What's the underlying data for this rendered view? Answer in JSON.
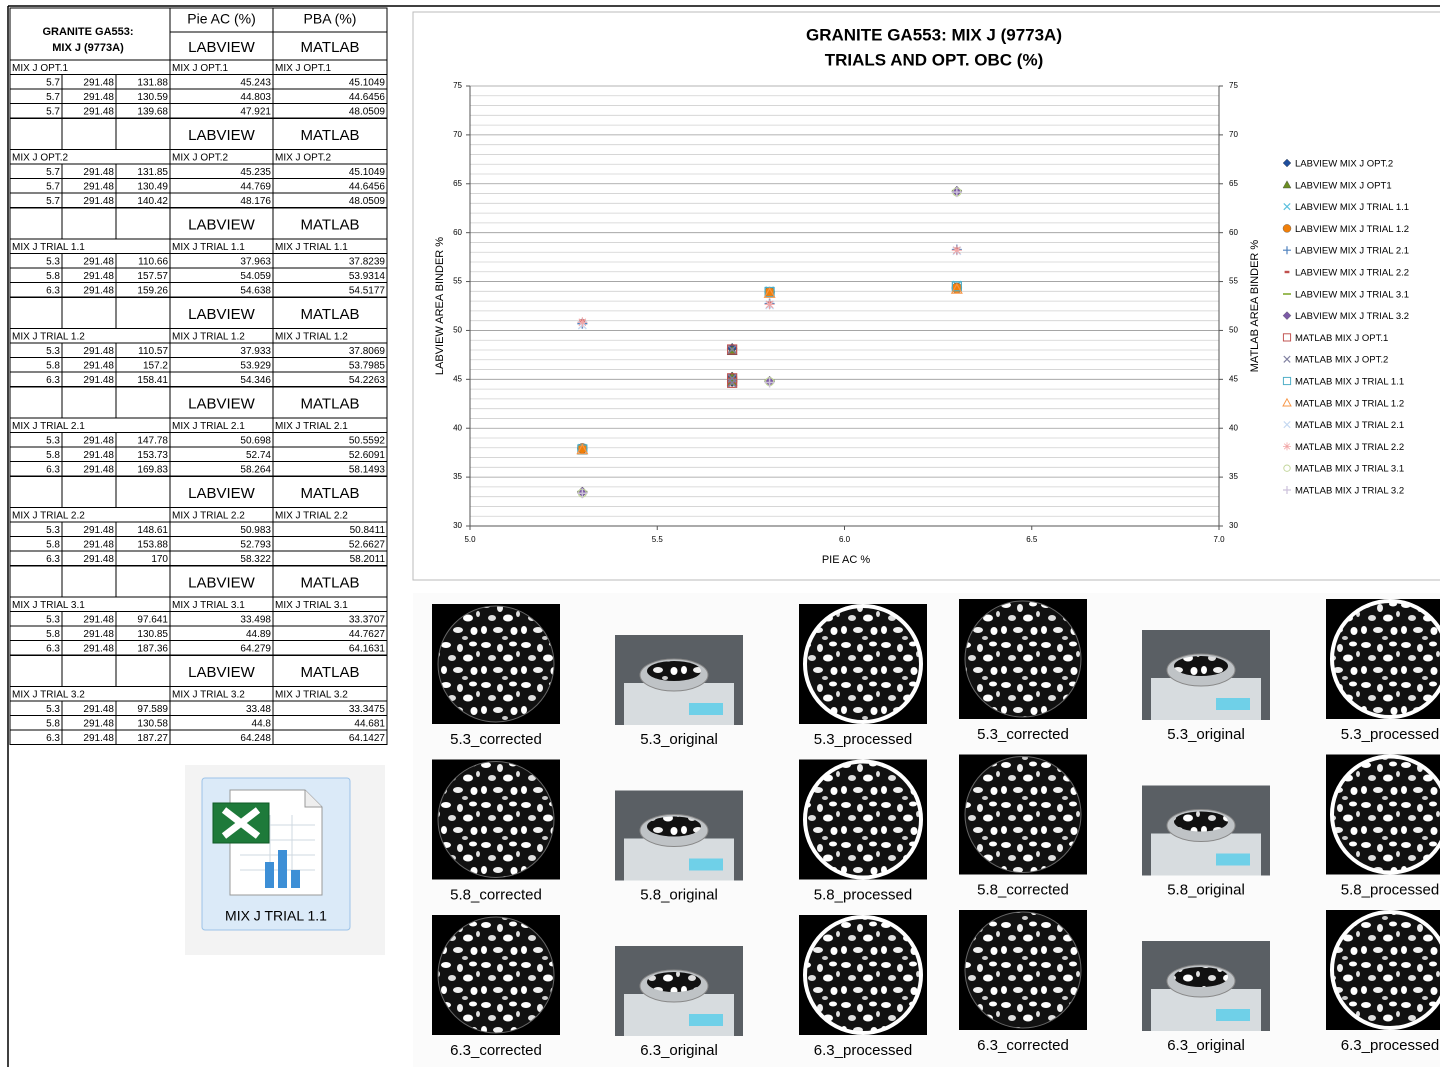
{
  "table": {
    "title_lines": [
      "GRANITE GA553:",
      "MIX J (9773A)"
    ],
    "col_headers": [
      "Pie AC (%)",
      "PBA (%)"
    ],
    "blocks": [
      {
        "lab_header": "LABVIEW",
        "mat_header": "MATLAB",
        "name": "MIX J OPT.1",
        "rows": [
          [
            5.7,
            291.48,
            131.88,
            45.243,
            45.1049
          ],
          [
            5.7,
            291.48,
            130.59,
            44.803,
            44.6456
          ],
          [
            5.7,
            291.48,
            139.68,
            47.921,
            48.0509
          ]
        ]
      },
      {
        "lab_header": "LABVIEW",
        "mat_header": "MATLAB",
        "name": "MIX J OPT.2",
        "rows": [
          [
            5.7,
            291.48,
            131.85,
            45.235,
            45.1049
          ],
          [
            5.7,
            291.48,
            130.49,
            44.769,
            44.6456
          ],
          [
            5.7,
            291.48,
            140.42,
            48.176,
            48.0509
          ]
        ]
      },
      {
        "lab_header": "LABVIEW",
        "mat_header": "MATLAB",
        "name": "MIX J TRIAL 1.1",
        "rows": [
          [
            5.3,
            291.48,
            110.66,
            37.963,
            37.8239
          ],
          [
            5.8,
            291.48,
            157.57,
            54.059,
            53.9314
          ],
          [
            6.3,
            291.48,
            159.26,
            54.638,
            54.5177
          ]
        ]
      },
      {
        "lab_header": "LABVIEW",
        "mat_header": "MATLAB",
        "name": "MIX J TRIAL 1.2",
        "rows": [
          [
            5.3,
            291.48,
            110.57,
            37.933,
            37.8069
          ],
          [
            5.8,
            291.48,
            157.2,
            53.929,
            53.7985
          ],
          [
            6.3,
            291.48,
            158.41,
            54.346,
            54.2263
          ]
        ]
      },
      {
        "lab_header": "LABVIEW",
        "mat_header": "MATLAB",
        "name": "MIX J TRIAL 2.1",
        "rows": [
          [
            5.3,
            291.48,
            147.78,
            50.698,
            50.5592
          ],
          [
            5.8,
            291.48,
            153.73,
            52.74,
            52.6091
          ],
          [
            6.3,
            291.48,
            169.83,
            58.264,
            58.1493
          ]
        ]
      },
      {
        "lab_header": "LABVIEW",
        "mat_header": "MATLAB",
        "name": "MIX J TRIAL 2.2",
        "rows": [
          [
            5.3,
            291.48,
            148.61,
            50.983,
            50.8411
          ],
          [
            5.8,
            291.48,
            153.88,
            52.793,
            52.6627
          ],
          [
            6.3,
            291.48,
            170,
            58.322,
            58.2011
          ]
        ]
      },
      {
        "lab_header": "LABVIEW",
        "mat_header": "MATLAB",
        "name": "MIX J TRIAL 3.1",
        "rows": [
          [
            5.3,
            291.48,
            97.641,
            33.498,
            33.3707
          ],
          [
            5.8,
            291.48,
            130.85,
            44.89,
            44.7627
          ],
          [
            6.3,
            291.48,
            187.36,
            64.279,
            64.1631
          ]
        ]
      },
      {
        "lab_header": "LABVIEW",
        "mat_header": "MATLAB",
        "name": "MIX J TRIAL 3.2",
        "rows": [
          [
            5.3,
            291.48,
            97.589,
            33.48,
            33.3475
          ],
          [
            5.8,
            291.48,
            130.58,
            44.8,
            44.681
          ],
          [
            6.3,
            291.48,
            187.27,
            64.248,
            64.1427
          ]
        ]
      }
    ]
  },
  "file_icon": {
    "label": "MIX J TRIAL 1.1"
  },
  "thumbnails": [
    [
      "5.3_corrected",
      "5.3_original",
      "5.3_processed",
      "5.8_corrected",
      "5.8_original",
      "5.8_processed",
      "6.3_corrected",
      "6.3_original",
      "6.3_processed"
    ],
    [
      "5.3_corrected",
      "5.3_original",
      "5.3_processed",
      "5.8_corrected",
      "5.8_original",
      "5.8_processed",
      "6.3_corrected",
      "6.3_original",
      "6.3_processed"
    ]
  ],
  "chart_data": {
    "type": "scatter",
    "title": "GRANITE GA553: MIX J (9773A)",
    "subtitle": "TRIALS AND OPT. OBC (%)",
    "x_label": "PIE AC %",
    "y_label": "LABVIEW AREA BINDER %",
    "y2_label": "MATLAB AREA BINDER %",
    "xlim": [
      5,
      7
    ],
    "xticks": [
      {
        "value": 5,
        "label": "5.0"
      },
      {
        "value": 5.5,
        "label": "5.5"
      },
      {
        "value": 6,
        "label": "6.0"
      },
      {
        "value": 6.5,
        "label": "6.5"
      },
      {
        "value": 7,
        "label": "7.0"
      }
    ],
    "ylim": [
      30,
      75
    ],
    "yticks": [
      30,
      35,
      40,
      45,
      50,
      55,
      60,
      65,
      70,
      75
    ],
    "y2lim": [
      30,
      75
    ],
    "y2ticks": [
      30,
      35,
      40,
      45,
      50,
      55,
      60,
      65,
      70,
      75
    ],
    "grid": true,
    "minor_grid": true,
    "legend": "right",
    "series": [
      {
        "name": "LABVIEW MIX J OPT.2",
        "color": "#1f4e9c",
        "marker": "diamond",
        "x": [
          5.7,
          5.7,
          5.7
        ],
        "values": [
          45.235,
          44.769,
          48.176
        ]
      },
      {
        "name": "LABVIEW MIX J OPT1",
        "color": "#6b8e23",
        "marker": "triangle",
        "x": [
          5.7,
          5.7,
          5.7
        ],
        "values": [
          45.243,
          44.803,
          47.921
        ]
      },
      {
        "name": "LABVIEW MIX J TRIAL 1.1",
        "color": "#5bc0de",
        "marker": "x",
        "x": [
          5.3,
          5.8,
          6.3
        ],
        "values": [
          37.963,
          54.059,
          54.638
        ]
      },
      {
        "name": "LABVIEW MIX J TRIAL 1.2",
        "color": "#f07f09",
        "marker": "circle",
        "x": [
          5.3,
          5.8,
          6.3
        ],
        "values": [
          37.933,
          53.929,
          54.346
        ]
      },
      {
        "name": "LABVIEW MIX J TRIAL 2.1",
        "color": "#4f81bd",
        "marker": "plus",
        "x": [
          5.3,
          5.8,
          6.3
        ],
        "values": [
          50.698,
          52.74,
          58.264
        ]
      },
      {
        "name": "LABVIEW MIX J TRIAL 2.2",
        "color": "#c0504d",
        "marker": "dash",
        "x": [
          5.3,
          5.8,
          6.3
        ],
        "values": [
          50.983,
          52.793,
          58.322
        ]
      },
      {
        "name": "LABVIEW MIX J TRIAL 3.1",
        "color": "#9bbb59",
        "marker": "line",
        "x": [
          5.3,
          5.8,
          6.3
        ],
        "values": [
          33.498,
          44.89,
          64.279
        ]
      },
      {
        "name": "LABVIEW MIX J TRIAL 3.2",
        "color": "#7b5aa6",
        "marker": "diamond",
        "x": [
          5.3,
          5.8,
          6.3
        ],
        "values": [
          33.48,
          44.8,
          64.248
        ]
      },
      {
        "name": "MATLAB MIX J OPT.1",
        "color": "#c0504d",
        "marker": "square-open",
        "x": [
          5.7,
          5.7,
          5.7
        ],
        "values": [
          45.1049,
          44.6456,
          48.0509
        ]
      },
      {
        "name": "MATLAB MIX J OPT.2",
        "color": "#7f7f9f",
        "marker": "x",
        "x": [
          5.7,
          5.7,
          5.7
        ],
        "values": [
          45.1049,
          44.6456,
          48.0509
        ]
      },
      {
        "name": "MATLAB MIX J TRIAL 1.1",
        "color": "#4bacc6",
        "marker": "square-open",
        "x": [
          5.3,
          5.8,
          6.3
        ],
        "values": [
          37.8239,
          53.9314,
          54.5177
        ]
      },
      {
        "name": "MATLAB MIX J TRIAL 1.2",
        "color": "#f79646",
        "marker": "triangle-open",
        "x": [
          5.3,
          5.8,
          6.3
        ],
        "values": [
          37.8069,
          53.7985,
          54.2263
        ]
      },
      {
        "name": "MATLAB MIX J TRIAL 2.1",
        "color": "#c6d9f1",
        "marker": "x",
        "x": [
          5.3,
          5.8,
          6.3
        ],
        "values": [
          50.5592,
          52.6091,
          58.1493
        ]
      },
      {
        "name": "MATLAB MIX J TRIAL 2.2",
        "color": "#f2a6a6",
        "marker": "asterisk",
        "x": [
          5.3,
          5.8,
          6.3
        ],
        "values": [
          50.8411,
          52.6627,
          58.2011
        ]
      },
      {
        "name": "MATLAB MIX J TRIAL 3.1",
        "color": "#c3d69b",
        "marker": "circle-open",
        "x": [
          5.3,
          5.8,
          6.3
        ],
        "values": [
          33.3707,
          44.7627,
          64.1631
        ]
      },
      {
        "name": "MATLAB MIX J TRIAL 3.2",
        "color": "#ccc0da",
        "marker": "plus",
        "x": [
          5.3,
          5.8,
          6.3
        ],
        "values": [
          33.3475,
          44.681,
          64.1427
        ]
      }
    ]
  }
}
